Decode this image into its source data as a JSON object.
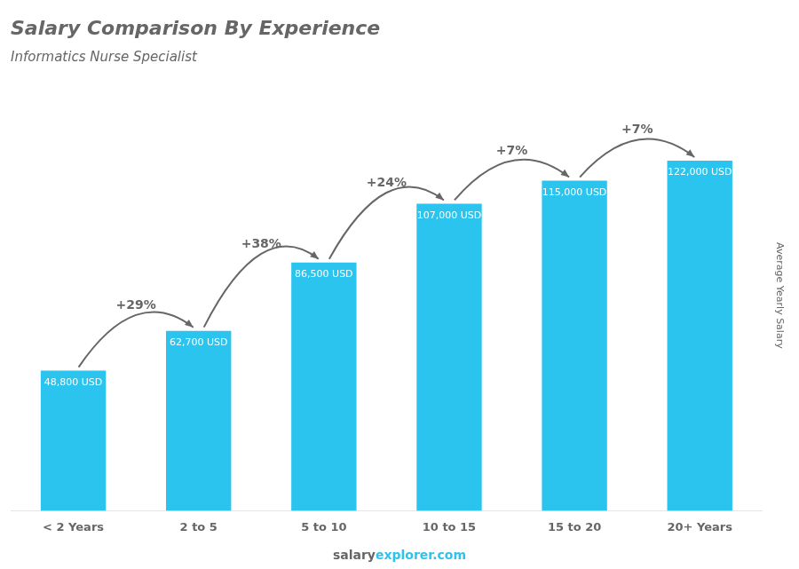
{
  "chart_data": {
    "type": "bar",
    "title": "Salary Comparison By Experience",
    "subtitle": "Informatics Nurse Specialist",
    "y_label": "Average Yearly Salary",
    "categories": [
      "< 2 Years",
      "2 to 5",
      "5 to 10",
      "10 to 15",
      "15 to 20",
      "20+ Years"
    ],
    "values": [
      48800,
      62700,
      86500,
      107000,
      115000,
      122000
    ],
    "value_labels": [
      "48,800 USD",
      "62,700 USD",
      "86,500 USD",
      "107,000 USD",
      "115,000 USD",
      "122,000 USD"
    ],
    "data_labels": true,
    "annotations": [
      "+29%",
      "+38%",
      "+24%",
      "+7%",
      "+7%"
    ],
    "watermark": [
      "salary",
      "explorer.com"
    ],
    "color": "#2BC4EE",
    "ylim": [
      0,
      150000
    ],
    "grid": false,
    "tick_labels": "x"
  }
}
